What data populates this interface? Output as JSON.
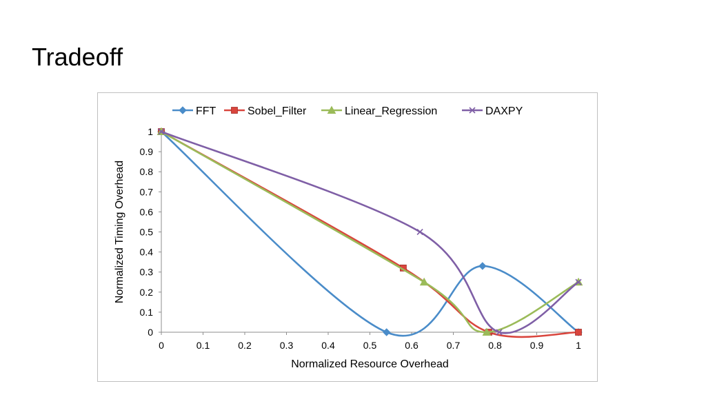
{
  "slide": {
    "title": "Tradeoff"
  },
  "chart_data": {
    "type": "line",
    "xlabel": "Normalized  Resource  Overhead",
    "ylabel": "Normalized  Timing  Overhead",
    "xlim": [
      0,
      1
    ],
    "ylim": [
      0,
      1
    ],
    "x_ticks": [
      "0",
      "0.1",
      "0.2",
      "0.3",
      "0.4",
      "0.5",
      "0.6",
      "0.7",
      "0.8",
      "0.9",
      "1"
    ],
    "y_ticks": [
      "0",
      "0.1",
      "0.2",
      "0.3",
      "0.4",
      "0.5",
      "0.6",
      "0.7",
      "0.8",
      "0.9",
      "1"
    ],
    "grid": false,
    "smooth": true,
    "legend_position": "top",
    "series": [
      {
        "name": "FFT",
        "color": "#4a8cc9",
        "marker": "diamond",
        "x": [
          0,
          0.54,
          0.77,
          1
        ],
        "y": [
          1,
          0,
          0.33,
          0
        ]
      },
      {
        "name": "Sobel_Filter",
        "color": "#d9453d",
        "marker": "square",
        "x": [
          0,
          0.58,
          0.785,
          1
        ],
        "y": [
          1,
          0.32,
          0,
          0
        ]
      },
      {
        "name": "Linear_Regression",
        "color": "#9bbb59",
        "marker": "triangle",
        "x": [
          0,
          0.63,
          0.78,
          1
        ],
        "y": [
          1,
          0.25,
          0,
          0.25
        ]
      },
      {
        "name": "DAXPY",
        "color": "#7f5fa6",
        "marker": "x",
        "x": [
          0,
          0.62,
          0.81,
          1
        ],
        "y": [
          1,
          0.5,
          0,
          0.25
        ]
      }
    ]
  }
}
